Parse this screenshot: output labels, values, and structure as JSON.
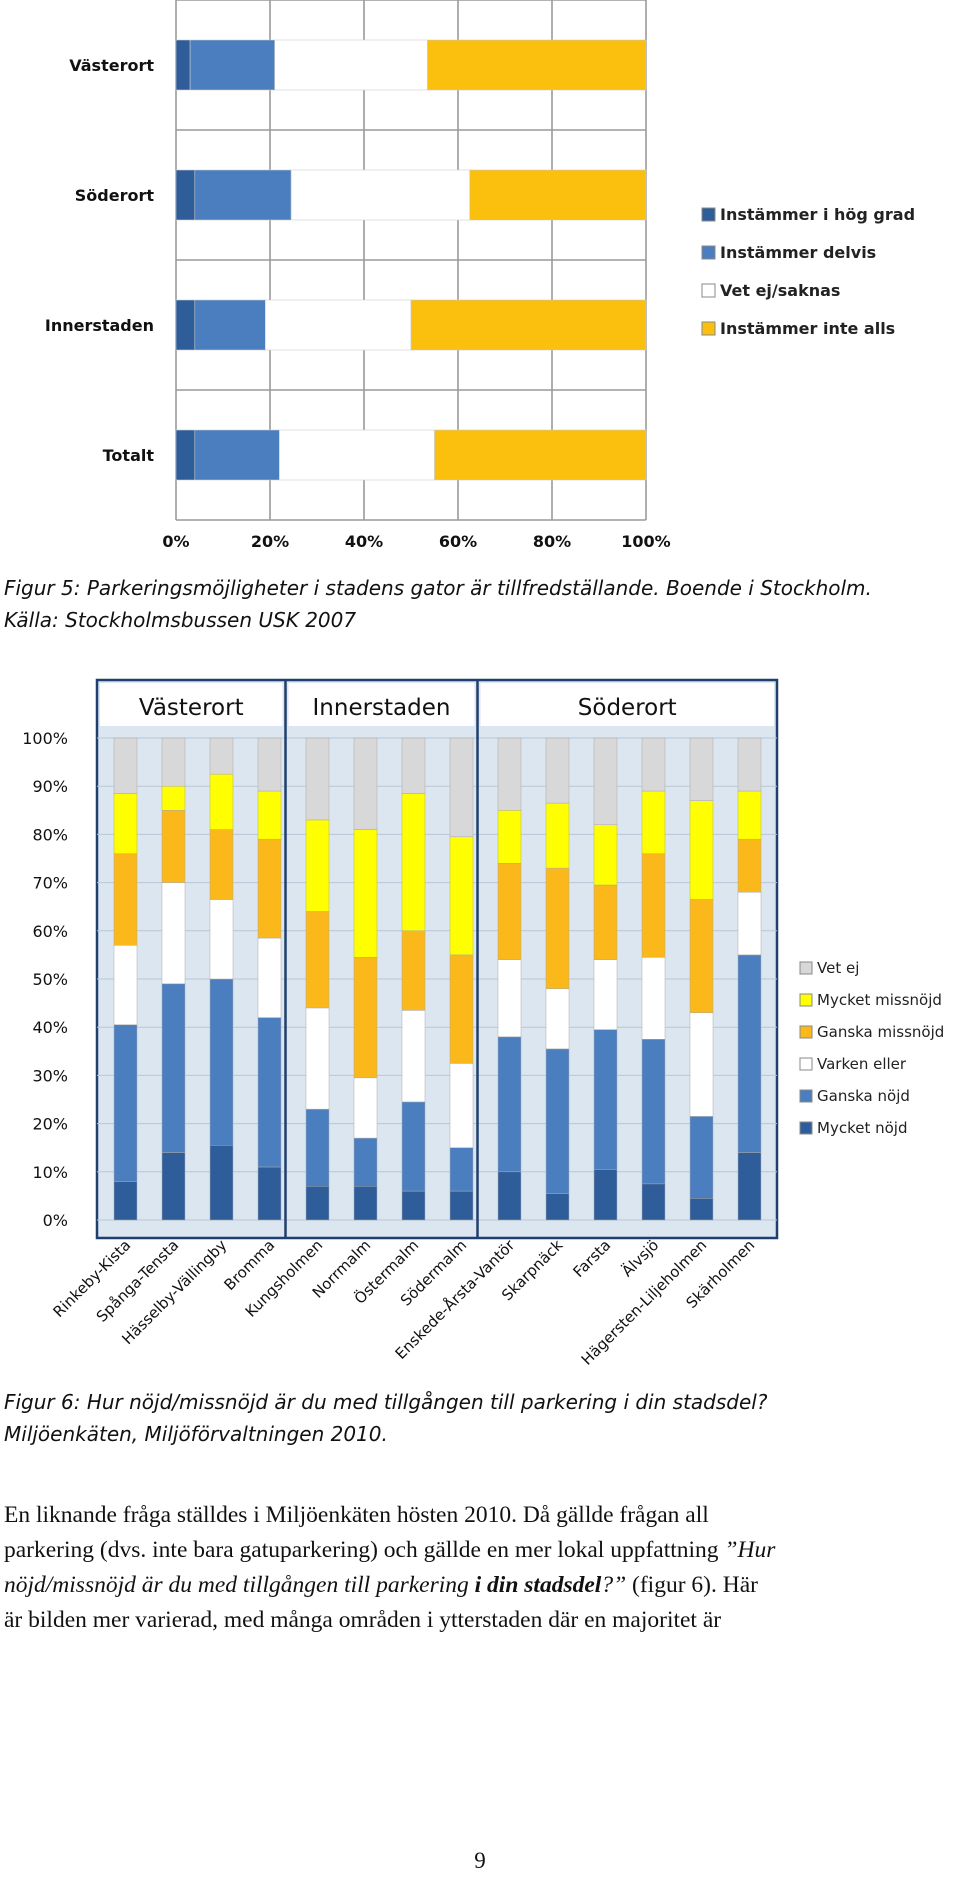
{
  "figure5": {
    "caption_line1": "Figur 5: Parkeringsmöjligheter i stadens gator är tillfredställande. Boende i Stockholm.",
    "caption_line2": "Källa: Stockholmsbussen USK 2007"
  },
  "figure6": {
    "caption_line1": "Figur 6: Hur nöjd/missnöjd är du med tillgången till parkering i din stadsdel?",
    "caption_line2": "Miljöenkäten, Miljöförvaltningen 2010."
  },
  "body": {
    "line1": "En liknande fråga ställdes i Miljöenkäten hösten 2010. Då gällde frågan all",
    "line2": "parkering (dvs. inte bara gatuparkering) och gällde en mer lokal uppfattning",
    "line2_quote": " ”Hur",
    "line3_a": "nöjd/missnöjd är du med tillgången till parkering ",
    "line3_b": "i din stadsdel",
    "line3_c": "?”",
    "line3_d": " (figur 6). Här",
    "line4": "är bilden mer varierad, med många områden i ytterstaden där en majoritet är"
  },
  "page_number": "9",
  "chart_data": [
    {
      "type": "bar",
      "orientation": "horizontal",
      "stacked": "percent",
      "categories": [
        "Västerort",
        "Söderort",
        "Innerstaden",
        "Totalt"
      ],
      "series": [
        {
          "name": "Instämmer i hög grad",
          "color": "#2e5d9a",
          "values": [
            3,
            4,
            4,
            4
          ]
        },
        {
          "name": "Instämmer delvis",
          "color": "#4a7ebf",
          "values": [
            18,
            20.5,
            15,
            18
          ]
        },
        {
          "name": "Vet ej/saknas",
          "color": "#ffffff",
          "values": [
            32.5,
            38,
            31,
            33
          ]
        },
        {
          "name": "Instämmer inte alls",
          "color": "#fbbf0e",
          "values": [
            46.5,
            37.5,
            50,
            45
          ]
        }
      ],
      "xlim": [
        0,
        100
      ],
      "x_ticks": [
        "0%",
        "20%",
        "40%",
        "60%",
        "80%",
        "100%"
      ],
      "grid": true,
      "legend": "right"
    },
    {
      "type": "bar",
      "orientation": "vertical",
      "stacked": "percent",
      "groups": [
        {
          "label": "Västerort",
          "count": 4
        },
        {
          "label": "Innerstaden",
          "count": 4
        },
        {
          "label": "Söderort",
          "count": 6
        }
      ],
      "categories": [
        "Rinkeby-Kista",
        "Spånga-Tensta",
        "Hässelby-Vällingby",
        "Bromma",
        "Kungsholmen",
        "Norrmalm",
        "Östermalm",
        "Södermalm",
        "Enskede-Årsta-Vantör",
        "Skarpnäck",
        "Farsta",
        "Älvsjö",
        "Hägersten-Liljeholmen",
        "Skärholmen"
      ],
      "series": [
        {
          "name": "Mycket nöjd",
          "color": "#2e5d9a",
          "values": [
            8,
            14,
            15.5,
            11,
            7,
            7,
            6,
            6,
            10,
            5.5,
            10.5,
            7.5,
            4.5,
            14
          ]
        },
        {
          "name": "Ganska nöjd",
          "color": "#4a7ebf",
          "values": [
            32.5,
            35,
            34.5,
            31,
            16,
            10,
            18.5,
            9,
            28,
            30,
            29,
            30,
            17,
            41
          ]
        },
        {
          "name": "Varken eller",
          "color": "#ffffff",
          "values": [
            16.5,
            21,
            16.5,
            16.5,
            21,
            12.5,
            19,
            17.5,
            16,
            12.5,
            14.5,
            17,
            21.5,
            13
          ]
        },
        {
          "name": "Ganska missnöjd",
          "color": "#fbb81a",
          "values": [
            19,
            15,
            14.5,
            20.5,
            20,
            25,
            16.5,
            22.5,
            20,
            25,
            15.5,
            21.5,
            23.5,
            11
          ]
        },
        {
          "name": "Mycket missnöjd",
          "color": "#ffff00",
          "values": [
            12.5,
            5,
            11.5,
            10,
            19,
            26.5,
            28.5,
            24.5,
            11,
            13.5,
            12.5,
            13,
            20.5,
            10
          ]
        },
        {
          "name": "Vet ej",
          "color": "#d8d8d8",
          "values": [
            11.5,
            10,
            7.5,
            11,
            17,
            19,
            11.5,
            20.5,
            15,
            13.5,
            18,
            11,
            13,
            11
          ]
        }
      ],
      "ylim": [
        0,
        100
      ],
      "y_ticks": [
        "0%",
        "10%",
        "20%",
        "30%",
        "40%",
        "50%",
        "60%",
        "70%",
        "80%",
        "90%",
        "100%"
      ],
      "grid": true,
      "legend": "right"
    }
  ]
}
